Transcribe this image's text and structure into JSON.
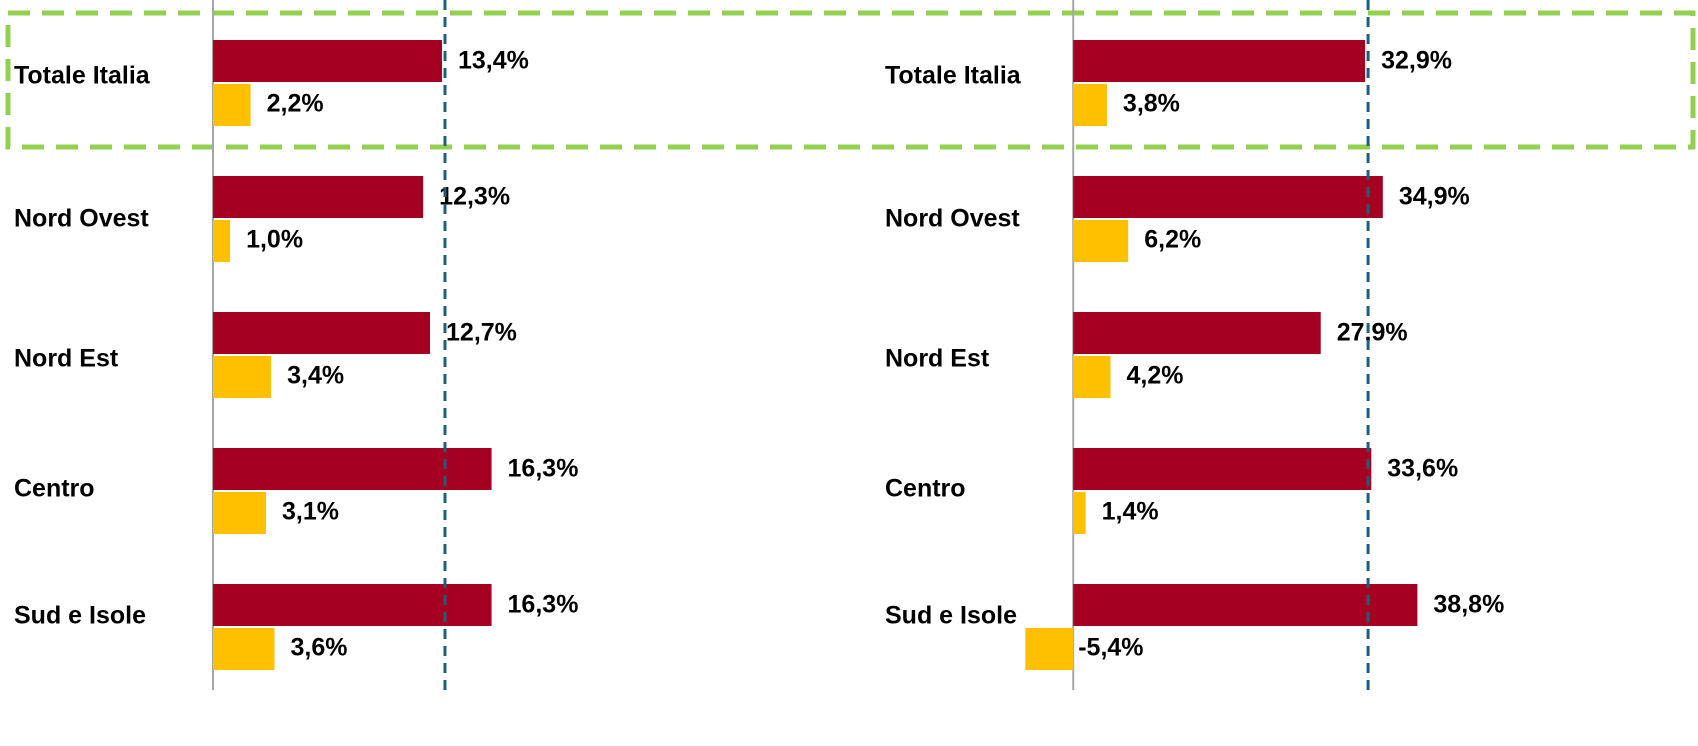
{
  "chart_data": [
    {
      "type": "bar",
      "orientation": "horizontal",
      "categories": [
        "Totale Italia",
        "Nord Ovest",
        "Nord Est",
        "Centro",
        "Sud e Isole"
      ],
      "xlim": [
        0,
        34
      ],
      "series": [
        {
          "color": "#a50021",
          "values": [
            13.4,
            12.3,
            12.7,
            16.3,
            16.3
          ],
          "value_labels": [
            "13,4%",
            "12,3%",
            "12,7%",
            "16,3%",
            "16,3%"
          ]
        },
        {
          "color": "#ffc000",
          "values": [
            2.2,
            1.0,
            3.4,
            3.1,
            3.6
          ],
          "value_labels": [
            "2,2%",
            "1,0%",
            "3,4%",
            "3,1%",
            "3,6%"
          ]
        }
      ]
    },
    {
      "type": "bar",
      "orientation": "horizontal",
      "categories": [
        "Totale Italia",
        "Nord Ovest",
        "Nord Est",
        "Centro",
        "Sud e Isole"
      ],
      "xlim": [
        -6,
        56
      ],
      "series": [
        {
          "color": "#a50021",
          "values": [
            32.9,
            34.9,
            27.9,
            33.6,
            38.8
          ],
          "value_labels": [
            "32,9%",
            "34,9%",
            "27,9%",
            "33,6%",
            "38,8%"
          ]
        },
        {
          "color": "#ffc000",
          "values": [
            3.8,
            6.2,
            4.2,
            1.4,
            -5.4
          ],
          "value_labels": [
            "3,8%",
            "6,2%",
            "4,2%",
            "1,4%",
            "-5,4%"
          ]
        }
      ]
    }
  ]
}
